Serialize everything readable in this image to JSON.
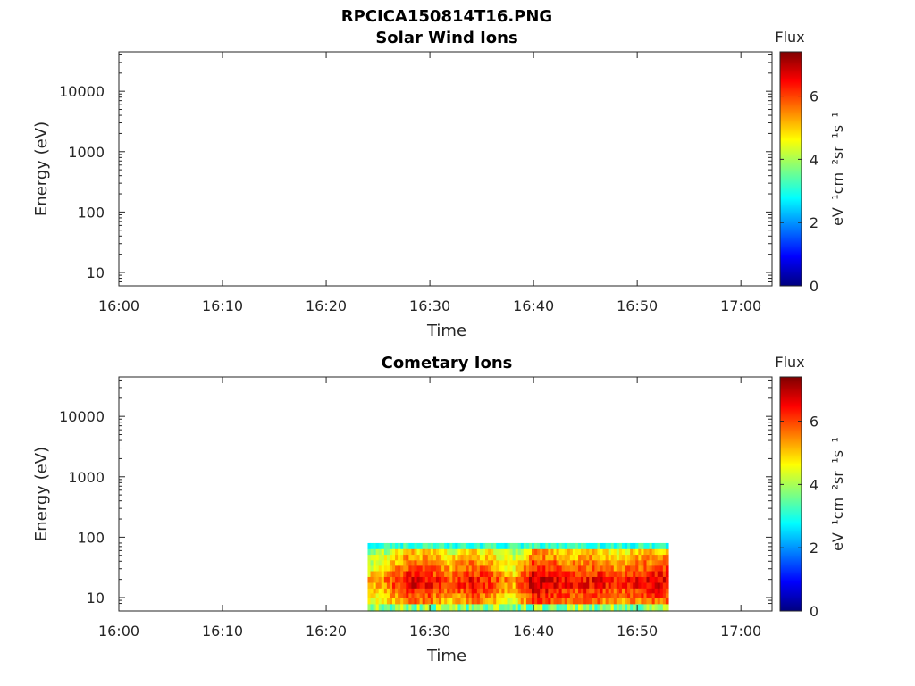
{
  "figure": {
    "title": "RPCICA150814T16.PNG"
  },
  "colormap": [
    "#00007f",
    "#0000ff",
    "#007fff",
    "#00ffff",
    "#7fff7f",
    "#ffff00",
    "#ff7f00",
    "#ff0000",
    "#7f0000"
  ],
  "chart_data": [
    {
      "type": "heatmap",
      "title": "Solar Wind Ions",
      "xlabel": "Time",
      "ylabel": "Energy (eV)",
      "y_scale": "log",
      "xlim": [
        "16:00",
        "17:03"
      ],
      "ylim": [
        6,
        45000
      ],
      "x_ticks": [
        "16:00",
        "16:10",
        "16:20",
        "16:30",
        "16:40",
        "16:50",
        "17:00"
      ],
      "y_ticks": [
        10,
        100,
        1000,
        10000
      ],
      "y_tick_labels": [
        "10",
        "100",
        "1000",
        "10000"
      ],
      "colorbar": {
        "label": "Flux",
        "unit": "eV⁻¹cm⁻²sr⁻¹s⁻¹",
        "range": [
          0,
          7.4
        ],
        "ticks": [
          0,
          2,
          4,
          6
        ],
        "tick_labels": [
          "0",
          "2",
          "4",
          "6"
        ]
      },
      "data_extent": null
    },
    {
      "type": "heatmap",
      "title": "Cometary Ions",
      "xlabel": "Time",
      "ylabel": "Energy (eV)",
      "y_scale": "log",
      "xlim": [
        "16:00",
        "17:03"
      ],
      "ylim": [
        6,
        45000
      ],
      "x_ticks": [
        "16:00",
        "16:10",
        "16:20",
        "16:30",
        "16:40",
        "16:50",
        "17:00"
      ],
      "y_ticks": [
        10,
        100,
        1000,
        10000
      ],
      "y_tick_labels": [
        "10",
        "100",
        "1000",
        "10000"
      ],
      "colorbar": {
        "label": "Flux",
        "unit": "eV⁻¹cm⁻²sr⁻¹s⁻¹",
        "range": [
          0,
          7.4
        ],
        "ticks": [
          0,
          2,
          4,
          6
        ],
        "tick_labels": [
          "0",
          "2",
          "4",
          "6"
        ]
      },
      "data_extent": {
        "time_start": "16:24",
        "time_end": "16:53",
        "energy_min": 6,
        "energy_max": 80
      },
      "energy_bins": [
        7,
        9,
        11,
        13,
        16,
        20,
        25,
        31,
        38,
        47,
        58,
        72
      ],
      "profile_note": "Flux peaks near 10–30 eV throughout; strongest around 16:28–16:36 and 16:40–16:53",
      "peak_flux_time_profile": [
        {
          "time": "16:24",
          "value": 5.5
        },
        {
          "time": "16:26",
          "value": 6.0
        },
        {
          "time": "16:28",
          "value": 7.0
        },
        {
          "time": "16:30",
          "value": 6.8
        },
        {
          "time": "16:32",
          "value": 6.2
        },
        {
          "time": "16:34",
          "value": 6.9
        },
        {
          "time": "16:36",
          "value": 6.4
        },
        {
          "time": "16:38",
          "value": 5.6
        },
        {
          "time": "16:40",
          "value": 7.3
        },
        {
          "time": "16:42",
          "value": 7.0
        },
        {
          "time": "16:44",
          "value": 6.7
        },
        {
          "time": "16:46",
          "value": 6.9
        },
        {
          "time": "16:48",
          "value": 6.5
        },
        {
          "time": "16:50",
          "value": 6.8
        },
        {
          "time": "16:52",
          "value": 7.0
        }
      ]
    }
  ]
}
